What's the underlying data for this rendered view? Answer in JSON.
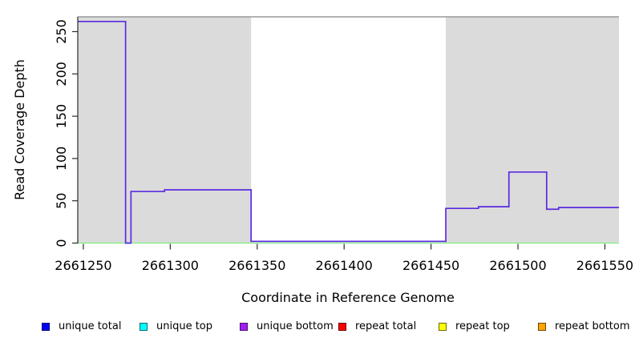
{
  "chart_data": {
    "type": "line",
    "title": "",
    "xlabel": "Coordinate in Reference Genome",
    "ylabel": "Read Coverage Depth",
    "xlim": [
      2661246.8,
      2661558.1
    ],
    "ylim": [
      0,
      267.5
    ],
    "x_ticks": [
      2661250,
      2661300,
      2661350,
      2661400,
      2661450,
      2661500,
      2661550
    ],
    "y_ticks": [
      0,
      50,
      100,
      150,
      200,
      250
    ],
    "grid": false,
    "legend_position": "bottom",
    "plot_background": "#FFFFFF",
    "top_border_color": "#999999",
    "axis_color": "#2B2B2B",
    "shaded_regions": [
      {
        "name": "repeat-region-left",
        "x0": 2661246.8,
        "x1": 2661346.5,
        "color": "#DBDBDB"
      },
      {
        "name": "repeat-region-right",
        "x0": 2661458.5,
        "x1": 2661558.1,
        "color": "#DBDBDB"
      }
    ],
    "series": [
      {
        "name": "zero baseline",
        "color": "#90EE90",
        "width": 1.4,
        "points": [
          [
            2661246.8,
            0
          ],
          [
            2661558.1,
            0
          ]
        ]
      },
      {
        "name": "unique bottom coverage",
        "color": "#5B2BE0",
        "width": 1.7,
        "points": [
          [
            2661246.8,
            262
          ],
          [
            2661274.3,
            262
          ],
          [
            2661274.3,
            0
          ],
          [
            2661277.4,
            0
          ],
          [
            2661277.4,
            61
          ],
          [
            2661296.7,
            61
          ],
          [
            2661296.7,
            63
          ],
          [
            2661346.5,
            63
          ],
          [
            2661346.5,
            2
          ],
          [
            2661458.5,
            2
          ],
          [
            2661458.5,
            41
          ],
          [
            2661477.3,
            41
          ],
          [
            2661477.3,
            43
          ],
          [
            2661494.8,
            43
          ],
          [
            2661494.8,
            84
          ],
          [
            2661516.5,
            84
          ],
          [
            2661516.5,
            40
          ],
          [
            2661523.4,
            40
          ],
          [
            2661523.4,
            42
          ],
          [
            2661558.1,
            42
          ]
        ]
      }
    ],
    "legend": [
      {
        "label": "unique total",
        "color": "#0000FF",
        "border": "#00006B"
      },
      {
        "label": "unique top",
        "color": "#00FFFF",
        "border": "#006B6B"
      },
      {
        "label": "unique bottom",
        "color": "#A020F0",
        "border": "#4B0B76"
      },
      {
        "label": "repeat total",
        "color": "#FF0000",
        "border": "#6B0000"
      },
      {
        "label": "repeat top",
        "color": "#FFFF00",
        "border": "#6B6B00"
      },
      {
        "label": "repeat bottom",
        "color": "#FFA500",
        "border": "#6B4500"
      }
    ]
  }
}
